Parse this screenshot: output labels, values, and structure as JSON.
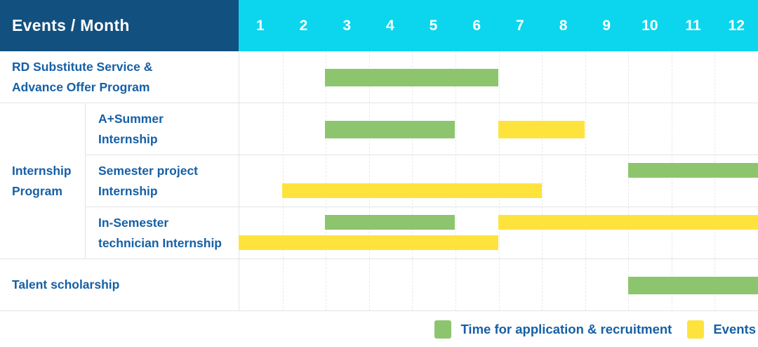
{
  "header": {
    "title": "Events / Month",
    "months": [
      "1",
      "2",
      "3",
      "4",
      "5",
      "6",
      "7",
      "8",
      "9",
      "10",
      "11",
      "12"
    ]
  },
  "colors": {
    "header_bg": "#12507f",
    "months_bg": "#0bd6ee",
    "text_blue": "#1660a6",
    "green": "#8dc56e",
    "yellow": "#ffe33d",
    "grid": "#e2e4e8"
  },
  "group": {
    "label_lines": [
      "Internship",
      "Program"
    ]
  },
  "rows": [
    {
      "label_lines": [
        "RD Substitute Service &",
        "Advance Offer Program"
      ],
      "bars": [
        {
          "color": "green",
          "start": 3,
          "end": 6,
          "track": "center"
        }
      ]
    },
    {
      "label_lines": [
        "A+Summer",
        "Internship"
      ],
      "bars": [
        {
          "color": "green",
          "start": 3,
          "end": 5,
          "track": "center"
        },
        {
          "color": "yellow",
          "start": 7,
          "end": 8,
          "track": "center"
        }
      ]
    },
    {
      "label_lines": [
        "Semester project",
        "Internship"
      ],
      "bars": [
        {
          "color": "green",
          "start": 10,
          "end": 12,
          "track": "top"
        },
        {
          "color": "yellow",
          "start": 2,
          "end": 7,
          "track": "bottom"
        }
      ]
    },
    {
      "label_lines": [
        "In-Semester",
        "technician Internship"
      ],
      "bars": [
        {
          "color": "green",
          "start": 3,
          "end": 5,
          "track": "top"
        },
        {
          "color": "yellow",
          "start": 7,
          "end": 12,
          "track": "top"
        },
        {
          "color": "yellow",
          "start": 1,
          "end": 6,
          "track": "bottom"
        }
      ]
    },
    {
      "label_lines": [
        "Talent scholarship"
      ],
      "bars": [
        {
          "color": "green",
          "start": 10,
          "end": 12,
          "track": "center"
        }
      ]
    }
  ],
  "legend": [
    {
      "color": "green",
      "label": "Time for application & recruitment"
    },
    {
      "color": "yellow",
      "label": "Events"
    }
  ],
  "chart_data": {
    "type": "table",
    "subtype": "gantt",
    "title": "Events / Month",
    "x_categories": [
      1,
      2,
      3,
      4,
      5,
      6,
      7,
      8,
      9,
      10,
      11,
      12
    ],
    "x_label": "Month",
    "legend_entries": [
      {
        "label": "Time for application & recruitment",
        "color": "#8dc56e"
      },
      {
        "label": "Events",
        "color": "#ffe33d"
      }
    ],
    "legend_position": "bottom-right",
    "grid": "dashed-vertical-month-lines",
    "rows": [
      {
        "event": "RD Substitute Service & Advance Offer Program",
        "group": null,
        "application_recruitment_month_ranges": [
          [
            3,
            6
          ]
        ],
        "events_month_ranges": []
      },
      {
        "event": "A+Summer Internship",
        "group": "Internship Program",
        "application_recruitment_month_ranges": [
          [
            3,
            5
          ]
        ],
        "events_month_ranges": [
          [
            7,
            8
          ]
        ]
      },
      {
        "event": "Semester project Internship",
        "group": "Internship Program",
        "application_recruitment_month_ranges": [
          [
            10,
            12
          ]
        ],
        "events_month_ranges": [
          [
            2,
            7
          ]
        ]
      },
      {
        "event": "In-Semester technician Internship",
        "group": "Internship Program",
        "application_recruitment_month_ranges": [
          [
            3,
            5
          ]
        ],
        "events_month_ranges": [
          [
            1,
            6
          ],
          [
            7,
            12
          ]
        ]
      },
      {
        "event": "Talent scholarship",
        "group": null,
        "application_recruitment_month_ranges": [
          [
            10,
            12
          ]
        ],
        "events_month_ranges": []
      }
    ]
  }
}
